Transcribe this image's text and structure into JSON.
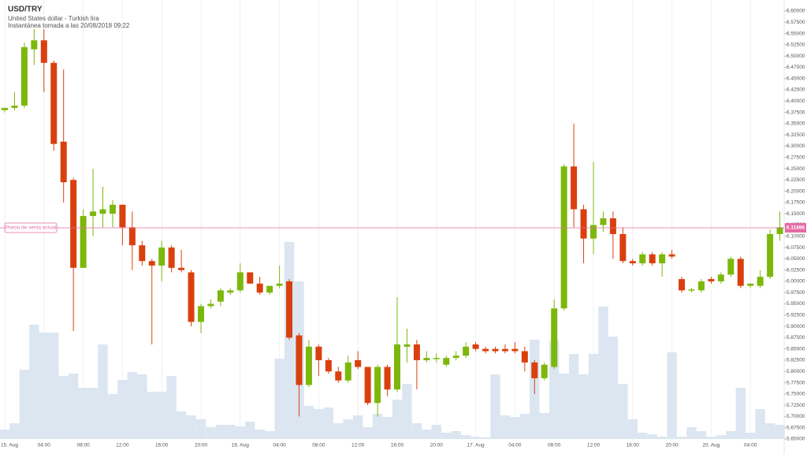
{
  "chart_data": {
    "type": "candlestick",
    "title": "USD/TRY",
    "subtitle": "United States dollar - Turkish lira",
    "snapshot": "Instantánea tomada a las 20/08/2018 09:22",
    "current_price": 6.11886,
    "current_price_label": "Precio de venta actual",
    "up_color": "#7cb80c",
    "down_color": "#d9400e",
    "volume_color": "#dbe6f1",
    "price_line_color": "#e46ba4",
    "grid": "x",
    "ylim": [
      5.65,
      6.6
    ],
    "yticks": [
      {
        "value": 6.6,
        "label": "6.60000"
      },
      {
        "value": 6.575,
        "label": "6.57500"
      },
      {
        "value": 6.55,
        "label": "6.55000"
      },
      {
        "value": 6.525,
        "label": "6.52500"
      },
      {
        "value": 6.5,
        "label": "6.50000"
      },
      {
        "value": 6.475,
        "label": "6.47500"
      },
      {
        "value": 6.45,
        "label": "6.45000"
      },
      {
        "value": 6.425,
        "label": "6.42500"
      },
      {
        "value": 6.4,
        "label": "6.40000"
      },
      {
        "value": 6.375,
        "label": "6.37500"
      },
      {
        "value": 6.35,
        "label": "6.35000"
      },
      {
        "value": 6.325,
        "label": "6.32500"
      },
      {
        "value": 6.3,
        "label": "6.30000"
      },
      {
        "value": 6.275,
        "label": "6.27500"
      },
      {
        "value": 6.25,
        "label": "6.25000"
      },
      {
        "value": 6.225,
        "label": "6.22500"
      },
      {
        "value": 6.2,
        "label": "6.20000"
      },
      {
        "value": 6.175,
        "label": "6.17500"
      },
      {
        "value": 6.15,
        "label": "6.15000"
      },
      {
        "value": 6.125,
        "label": "6.12500"
      },
      {
        "value": 6.1,
        "label": "6.10000"
      },
      {
        "value": 6.075,
        "label": "6.07500"
      },
      {
        "value": 6.05,
        "label": "6.05000"
      },
      {
        "value": 6.025,
        "label": "6.02500"
      },
      {
        "value": 6.0,
        "label": "6.00000"
      },
      {
        "value": 5.975,
        "label": "5.97500"
      },
      {
        "value": 5.95,
        "label": "5.95000"
      },
      {
        "value": 5.925,
        "label": "5.92500"
      },
      {
        "value": 5.9,
        "label": "5.90000"
      },
      {
        "value": 5.875,
        "label": "5.87500"
      },
      {
        "value": 5.85,
        "label": "5.85000"
      },
      {
        "value": 5.825,
        "label": "5.82500"
      },
      {
        "value": 5.8,
        "label": "5.80000"
      },
      {
        "value": 5.775,
        "label": "5.77500"
      },
      {
        "value": 5.75,
        "label": "5.75000"
      },
      {
        "value": 5.725,
        "label": "5.72500"
      },
      {
        "value": 5.7,
        "label": "5.70000"
      },
      {
        "value": 5.675,
        "label": "5.67500"
      },
      {
        "value": 5.65,
        "label": "5.65000"
      }
    ],
    "categories": [
      "15. Aug",
      null,
      null,
      null,
      "04:00",
      null,
      null,
      null,
      "08:00",
      null,
      null,
      null,
      "12:00",
      null,
      null,
      null,
      "16:00",
      null,
      null,
      null,
      "20:00",
      null,
      null,
      null,
      "16. Aug",
      null,
      null,
      null,
      "04:00",
      null,
      null,
      null,
      "08:00",
      null,
      null,
      null,
      "12:00",
      null,
      null,
      null,
      "16:00",
      null,
      null,
      null,
      "20:00",
      null,
      null,
      null,
      "17. Aug",
      null,
      null,
      null,
      "04:00",
      null,
      null,
      null,
      "08:00",
      null,
      null,
      null,
      "12:00",
      null,
      null,
      null,
      "16:00",
      null,
      null,
      null,
      "20:00",
      null,
      null,
      null,
      "20. Aug",
      null,
      null,
      null,
      "04:00",
      null,
      null,
      null
    ],
    "open": [
      6.38,
      6.385,
      6.39,
      6.515,
      6.535,
      6.485,
      6.31,
      6.225,
      6.03,
      6.145,
      6.15,
      6.15,
      6.17,
      6.12,
      6.08,
      6.045,
      6.035,
      6.075,
      6.03,
      6.02,
      5.91,
      5.945,
      5.955,
      5.975,
      5.98,
      6.02,
      5.995,
      5.975,
      5.99,
      6.0,
      5.88,
      5.77,
      5.855,
      5.825,
      5.8,
      5.78,
      5.825,
      5.81,
      5.73,
      5.81,
      5.76,
      5.855,
      5.86,
      5.825,
      5.83,
      5.815,
      5.83,
      5.835,
      5.86,
      5.85,
      5.85,
      5.85,
      5.85,
      5.845,
      5.82,
      5.785,
      5.81,
      5.94,
      6.255,
      6.16,
      6.095,
      6.125,
      6.14,
      6.105,
      6.045,
      6.04,
      6.06,
      6.04,
      6.06,
      6.005,
      5.98,
      5.98,
      6.005,
      6.0,
      6.015,
      6.05,
      5.99,
      5.99,
      6.01,
      6.105
    ],
    "high": [
      6.385,
      6.42,
      6.53,
      6.56,
      6.56,
      6.49,
      6.47,
      6.23,
      6.16,
      6.25,
      6.21,
      6.18,
      6.17,
      6.155,
      6.09,
      6.05,
      6.09,
      6.08,
      6.07,
      6.025,
      5.95,
      5.96,
      5.985,
      5.985,
      6.04,
      6.02,
      6.01,
      5.99,
      6.035,
      6.005,
      5.885,
      5.87,
      5.86,
      5.83,
      5.81,
      5.835,
      5.845,
      5.81,
      5.815,
      5.815,
      5.965,
      5.895,
      5.87,
      5.845,
      5.84,
      5.835,
      5.845,
      5.865,
      5.865,
      5.855,
      5.855,
      5.86,
      5.865,
      5.855,
      5.825,
      5.82,
      5.96,
      6.26,
      6.35,
      6.17,
      6.265,
      6.155,
      6.155,
      6.12,
      6.05,
      6.065,
      6.065,
      6.065,
      6.07,
      6.01,
      5.985,
      6.005,
      6.01,
      6.02,
      6.055,
      6.055,
      5.995,
      6.025,
      6.115,
      6.155
    ],
    "low": [
      6.375,
      6.38,
      6.385,
      6.48,
      6.42,
      6.29,
      6.175,
      5.89,
      6.03,
      6.1,
      6.12,
      6.12,
      6.08,
      6.025,
      6.035,
      5.86,
      6.0,
      6.02,
      6.02,
      5.9,
      5.885,
      5.94,
      5.945,
      5.97,
      5.975,
      5.995,
      5.97,
      5.97,
      5.985,
      5.87,
      5.7,
      5.765,
      5.79,
      5.795,
      5.775,
      5.775,
      5.805,
      5.725,
      5.7,
      5.745,
      5.755,
      5.82,
      5.76,
      5.82,
      5.82,
      5.81,
      5.825,
      5.83,
      5.845,
      5.84,
      5.84,
      5.84,
      5.84,
      5.8,
      5.75,
      5.78,
      5.805,
      5.935,
      6.12,
      6.04,
      6.06,
      6.11,
      6.05,
      6.04,
      6.035,
      6.035,
      6.035,
      6.01,
      6.05,
      5.975,
      5.975,
      5.975,
      5.995,
      5.995,
      6.01,
      5.985,
      5.985,
      5.985,
      6.005,
      6.09
    ],
    "close": [
      6.385,
      6.39,
      6.52,
      6.535,
      6.485,
      6.305,
      6.22,
      6.03,
      6.145,
      6.155,
      6.16,
      6.17,
      6.12,
      6.08,
      6.045,
      6.035,
      6.075,
      6.03,
      6.025,
      5.91,
      5.945,
      5.95,
      5.98,
      5.98,
      6.02,
      5.995,
      5.975,
      5.99,
      5.995,
      5.875,
      5.77,
      5.855,
      5.825,
      5.8,
      5.78,
      5.82,
      5.81,
      5.73,
      5.81,
      5.76,
      5.86,
      5.86,
      5.825,
      5.83,
      5.83,
      5.83,
      5.835,
      5.855,
      5.85,
      5.845,
      5.845,
      5.845,
      5.845,
      5.82,
      5.785,
      5.815,
      5.94,
      6.255,
      6.16,
      6.095,
      6.125,
      6.14,
      6.105,
      6.045,
      6.04,
      6.06,
      6.04,
      6.06,
      6.055,
      5.98,
      5.982,
      6.0,
      6.0,
      6.015,
      6.05,
      5.99,
      5.995,
      6.01,
      6.105,
      6.12
    ],
    "volume": [
      12,
      20,
      88,
      145,
      135,
      135,
      80,
      83,
      65,
      65,
      120,
      57,
      75,
      85,
      82,
      60,
      60,
      80,
      35,
      30,
      25,
      15,
      18,
      18,
      16,
      22,
      12,
      10,
      102,
      250,
      200,
      42,
      38,
      40,
      20,
      25,
      30,
      15,
      32,
      28,
      50,
      70,
      20,
      12,
      18,
      8,
      10,
      5,
      3,
      2,
      82,
      30,
      28,
      32,
      126,
      33,
      125,
      83,
      108,
      82,
      108,
      168,
      130,
      70,
      25,
      8,
      6,
      3,
      110,
      3,
      15,
      10,
      3,
      5,
      10,
      65,
      8,
      38,
      20,
      18
    ]
  }
}
